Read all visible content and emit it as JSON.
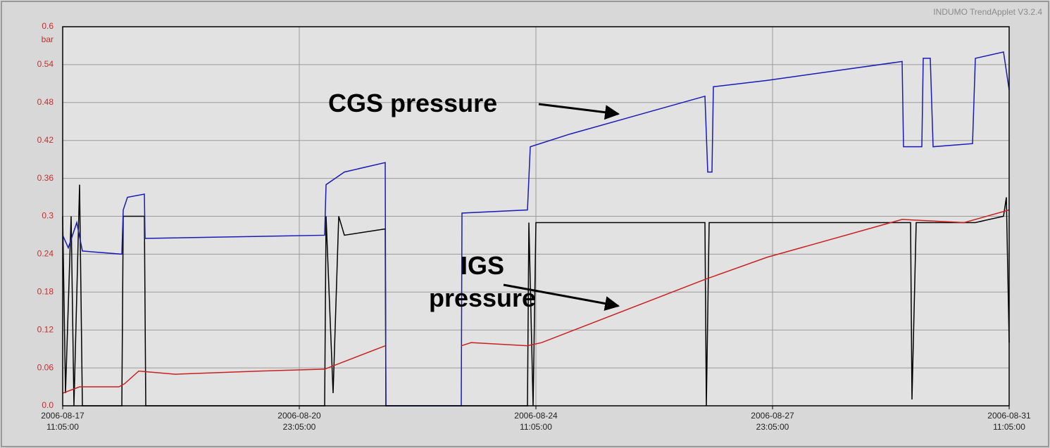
{
  "chart_data": {
    "type": "line",
    "watermark": "INDUMO TrendApplet V3.2.4",
    "y_unit": "bar",
    "ylim": [
      0,
      0.6
    ],
    "yticks": [
      {
        "value": 0,
        "label": "0.0"
      },
      0.06,
      0.12,
      0.18,
      0.24,
      0.3,
      0.36,
      0.42,
      0.48,
      0.54,
      0.6
    ],
    "xlim": [
      "2006-08-17 11:05:00",
      "2006-08-31 11:05:00"
    ],
    "xticks": [
      {
        "value": "2006-08-17 11:05:00",
        "label": "2006-08-17\n11:05:00"
      },
      {
        "value": "2006-08-20 23:05:00",
        "label": "2006-08-20\n23:05:00"
      },
      {
        "value": "2006-08-24 11:05:00",
        "label": "2006-08-24\n11:05:00"
      },
      {
        "value": "2006-08-27 23:05:00",
        "label": "2006-08-27\n23:05:00"
      },
      {
        "value": "2006-08-31 11:05:00",
        "label": "2006-08-31\n11:05:00"
      }
    ],
    "grid": true,
    "annotations": [
      {
        "text": "CGS pressure"
      },
      {
        "text": "IGS\npressure"
      }
    ],
    "series": [
      {
        "color": "#000000",
        "x": [
          "2006-08-17 11:05",
          "2006-08-17 12:05",
          "2006-08-17 14:05",
          "2006-08-17 15:05",
          "2006-08-17 17:05",
          "2006-08-17 18:05",
          "2006-08-18 08:05",
          "2006-08-18 08:35",
          "2006-08-18 16:05",
          "2006-08-18 16:35",
          "2006-08-21 08:05",
          "2006-08-21 08:35",
          "2006-08-21 11:05",
          "2006-08-21 13:05",
          "2006-08-21 15:05",
          "2006-08-22 05:35",
          "2006-08-22 05:50",
          "2006-08-24 08:05",
          "2006-08-24 08:35",
          "2006-08-24 10:05",
          "2006-08-24 11:05",
          "2006-08-26 23:05",
          "2006-08-26 23:35",
          "2006-08-27 00:35",
          "2006-08-30 00:05",
          "2006-08-30 00:35",
          "2006-08-30 02:05",
          "2006-08-30 23:05",
          "2006-08-31 09:05",
          "2006-08-31 10:05",
          "2006-08-31 11:05"
        ],
        "values": [
          0.3,
          0.02,
          0.3,
          0,
          0.35,
          0,
          0,
          0.3,
          0.3,
          0,
          0,
          0.3,
          0.02,
          0.3,
          0.27,
          0.28,
          0,
          0,
          0.29,
          0,
          0.29,
          0.29,
          0,
          0.29,
          0.29,
          0.01,
          0.29,
          0.29,
          0.3,
          0.33,
          0.1
        ]
      },
      {
        "color": "#1a1ab4",
        "x": [
          "2006-08-17 11:05",
          "2006-08-17 13:05",
          "2006-08-17 16:05",
          "2006-08-17 18:05",
          "2006-08-18 08:05",
          "2006-08-18 08:35",
          "2006-08-18 10:05",
          "2006-08-18 16:05",
          "2006-08-18 16:20",
          "2006-08-21 08:05",
          "2006-08-21 08:35",
          "2006-08-21 15:05",
          "2006-08-22 05:35",
          "2006-08-22 05:50",
          "2006-08-23 08:35",
          "2006-08-23 08:50",
          "2006-08-24 08:05",
          "2006-08-24 09:05",
          "2006-08-24 23:05",
          "2006-08-26 23:05",
          "2006-08-27 00:05",
          "2006-08-27 01:35",
          "2006-08-27 02:05",
          "2006-08-27 21:05",
          "2006-08-29 21:05",
          "2006-08-29 21:35",
          "2006-08-30 04:05",
          "2006-08-30 04:35",
          "2006-08-30 07:05",
          "2006-08-30 08:05",
          "2006-08-30 22:05",
          "2006-08-30 23:05",
          "2006-08-31 09:05",
          "2006-08-31 11:05"
        ],
        "values": [
          0.27,
          0.25,
          0.29,
          0.245,
          0.24,
          0.31,
          0.33,
          0.335,
          0.265,
          0.27,
          0.35,
          0.37,
          0.385,
          0,
          0,
          0.305,
          0.31,
          0.41,
          0.43,
          0.49,
          0.37,
          0.37,
          0.505,
          0.515,
          0.545,
          0.41,
          0.41,
          0.55,
          0.55,
          0.41,
          0.415,
          0.55,
          0.56,
          0.5
        ]
      },
      {
        "color": "#c82020",
        "x": [
          "2006-08-17 11:05",
          "2006-08-17 17:05",
          "2006-08-18 07:05",
          "2006-08-18 09:05",
          "2006-08-18 14:05",
          "2006-08-19 03:05",
          "2006-08-20 09:05",
          "2006-08-21 08:05",
          "2006-08-22 05:35",
          "2006-08-22 12:05",
          "2006-08-23 08:35",
          "2006-08-23 12:05",
          "2006-08-24 08:05",
          "2006-08-24 13:05",
          "2006-08-26 23:05",
          "2006-08-27 21:05",
          "2006-08-29 21:05",
          "2006-08-30 19:05",
          "2006-08-31 11:05"
        ],
        "values": [
          0.02,
          0.03,
          0.03,
          0.035,
          0.055,
          0.05,
          0.055,
          0.058,
          0.095,
          null,
          0.095,
          0.1,
          0.095,
          0.1,
          0.2,
          0.235,
          0.295,
          0.29,
          0.31
        ]
      }
    ]
  }
}
